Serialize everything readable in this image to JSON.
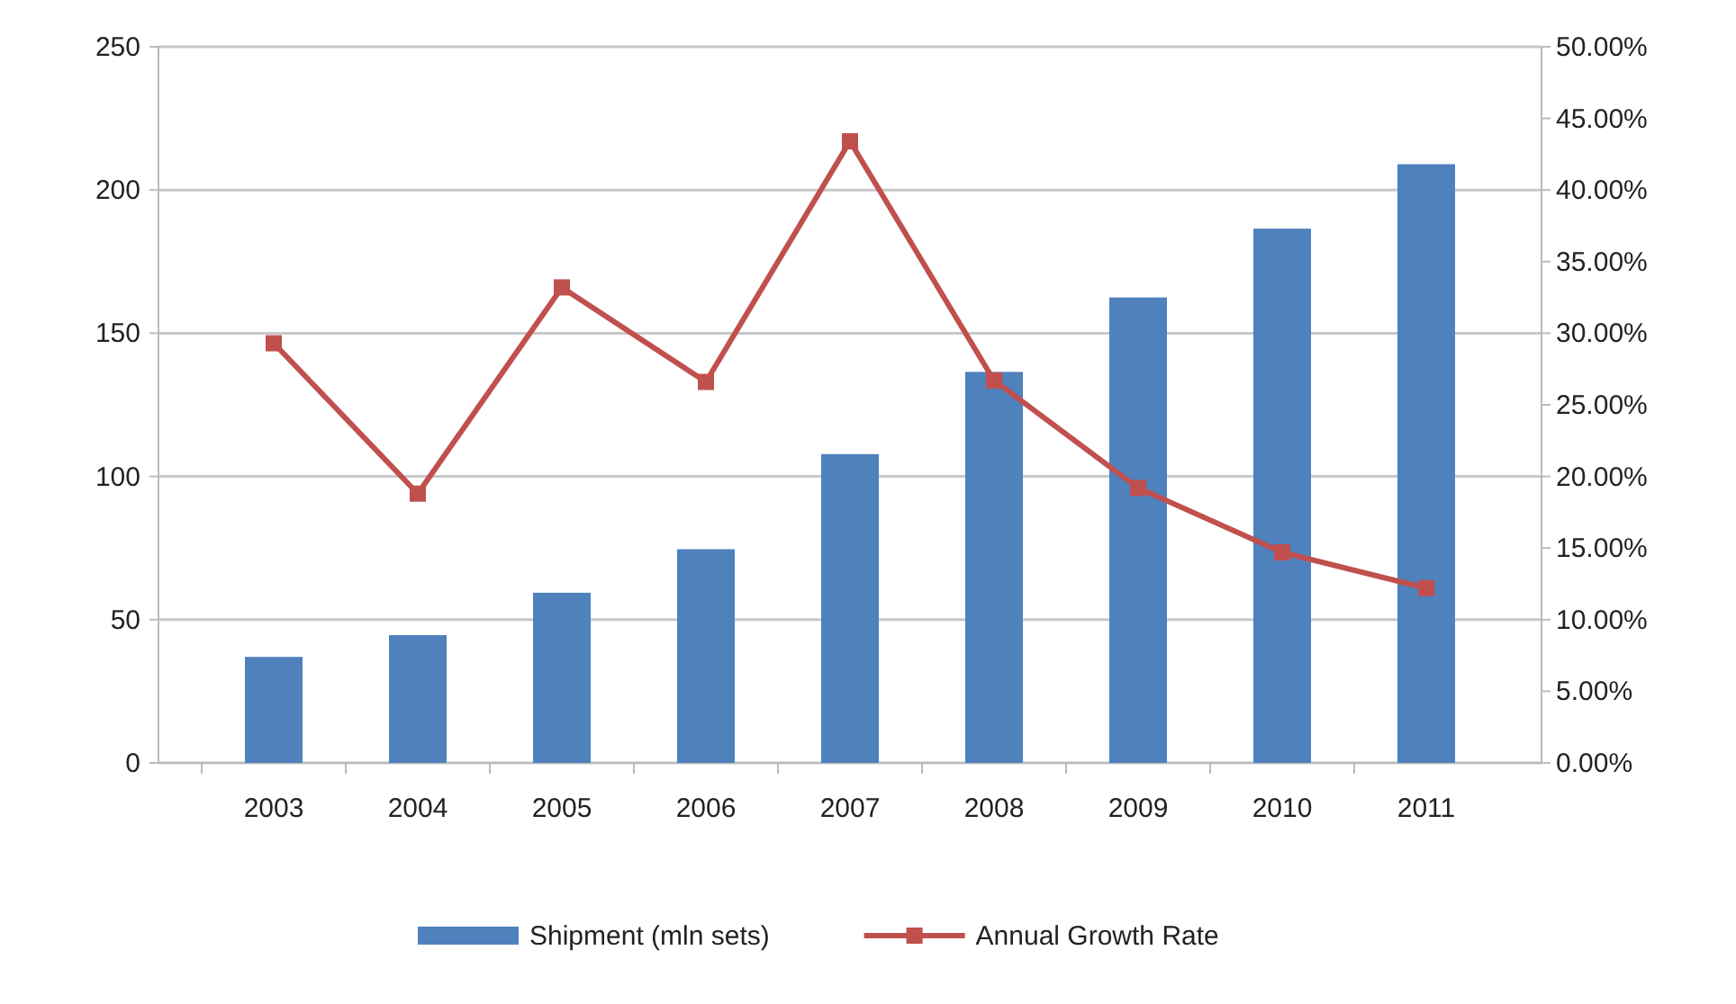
{
  "chart_data": {
    "type": "bar",
    "categories": [
      "2003",
      "2004",
      "2005",
      "2006",
      "2007",
      "2008",
      "2009",
      "2010",
      "2011"
    ],
    "series": [
      {
        "name": "Shipment (mln sets)",
        "color": "#4f81bd",
        "values": [
          37,
          44.6,
          59.4,
          74.6,
          107.8,
          136.5,
          162.5,
          186.5,
          209
        ]
      },
      {
        "name": "Annual Growth Rate",
        "type": "line",
        "axis": "y2",
        "color": "#c0504d",
        "values": [
          29.3,
          18.8,
          33.2,
          26.6,
          43.4,
          26.7,
          19.2,
          14.7,
          12.2
        ]
      }
    ],
    "ylim": [
      0,
      250
    ],
    "yticks": [
      0,
      50,
      100,
      150,
      200,
      250
    ],
    "y2lim": [
      0,
      50
    ],
    "y2ticks": [
      {
        "value": 0,
        "label": "0.00%"
      },
      {
        "value": 5,
        "label": "5.00%"
      },
      {
        "value": 10,
        "label": "10.00%"
      },
      {
        "value": 15,
        "label": "15.00%"
      },
      {
        "value": 20,
        "label": "20.00%"
      },
      {
        "value": 25,
        "label": "25.00%"
      },
      {
        "value": 30,
        "label": "30.00%"
      },
      {
        "value": 35,
        "label": "35.00%"
      },
      {
        "value": 40,
        "label": "40.00%"
      },
      {
        "value": 45,
        "label": "45.00%"
      },
      {
        "value": 50,
        "label": "50.00%"
      }
    ],
    "grid": "y",
    "legend": "bottom",
    "marker": "square"
  }
}
